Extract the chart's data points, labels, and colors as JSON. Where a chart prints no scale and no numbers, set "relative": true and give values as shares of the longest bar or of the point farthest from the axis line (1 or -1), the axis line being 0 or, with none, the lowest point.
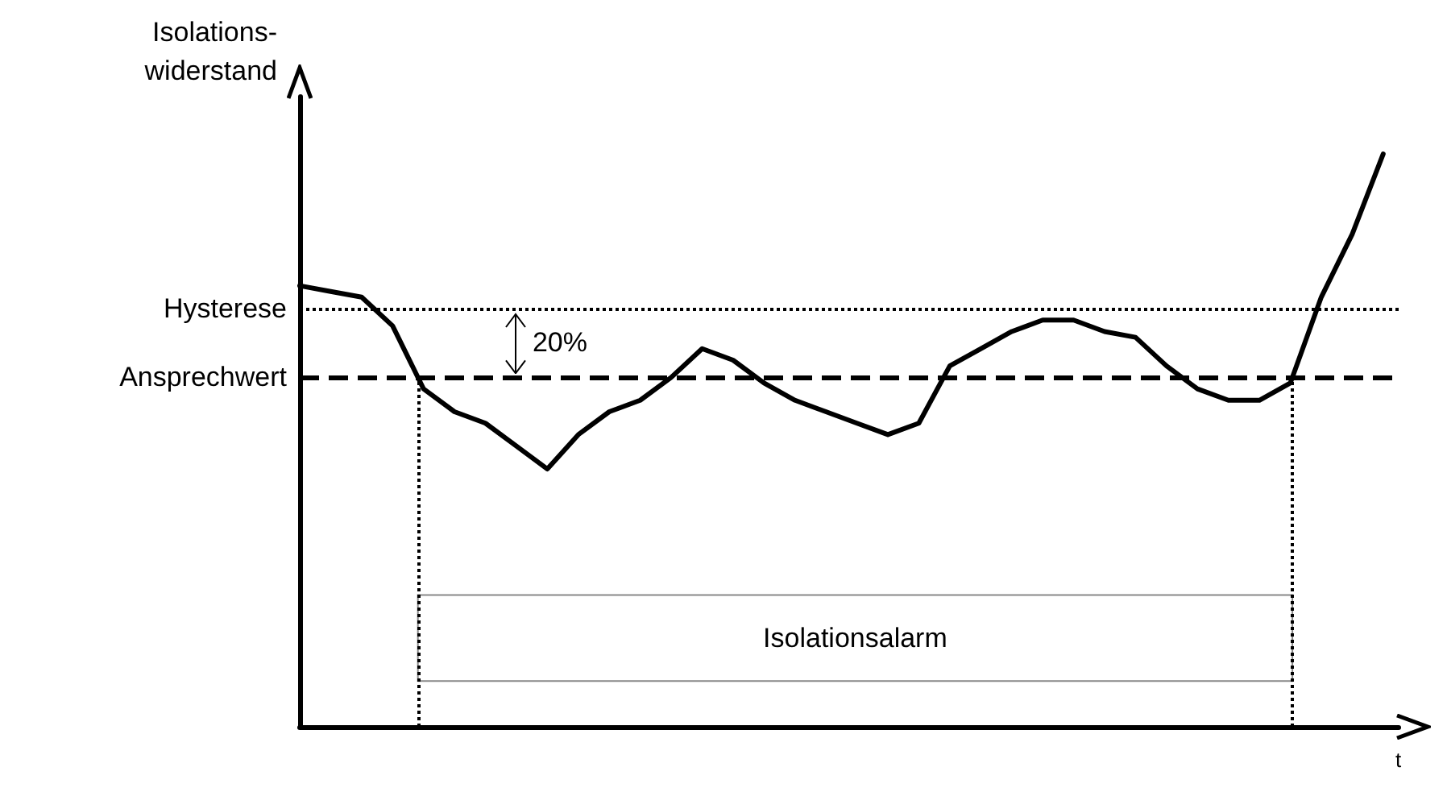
{
  "chart_data": {
    "type": "line",
    "relative": true,
    "xlabel": "t",
    "ylabel": "Isolations-\nwiderstand",
    "categories": [
      null,
      null,
      null,
      null,
      null,
      null,
      null,
      null,
      null,
      null,
      null,
      null,
      null,
      null,
      null,
      null,
      null,
      null,
      null,
      null,
      null,
      null,
      null,
      null,
      null,
      null,
      null,
      null,
      null,
      null,
      null,
      null,
      null,
      null,
      null,
      null
    ],
    "series": [
      {
        "color": "#000000",
        "values": [
          0.77,
          0.76,
          0.75,
          0.7,
          0.59,
          0.55,
          0.53,
          0.49,
          0.45,
          0.51,
          0.55,
          0.57,
          0.61,
          0.66,
          0.64,
          0.6,
          0.57,
          0.55,
          0.53,
          0.51,
          0.53,
          0.63,
          0.66,
          0.69,
          0.71,
          0.71,
          0.69,
          0.68,
          0.63,
          0.59,
          0.57,
          0.57,
          0.6,
          0.75,
          0.86,
          1.0
        ]
      }
    ],
    "ref_lines": [
      {
        "axis": "y",
        "value": 0.73,
        "label": "Hysterese",
        "line_style": "dotted"
      },
      {
        "axis": "y",
        "value": 0.61,
        "label": "Ansprechwert",
        "line_style": "dashed"
      }
    ],
    "annotations": [
      "20%",
      "Isolationsalarm"
    ],
    "marker": "none",
    "line_style": "solid"
  }
}
